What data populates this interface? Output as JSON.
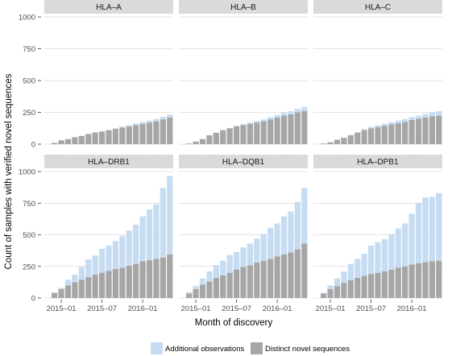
{
  "chart_data": {
    "type": "bar",
    "stacked": true,
    "facets_layout": "2 rows x 3 columns",
    "shared_y_axis": true,
    "ylim": [
      0,
      1000
    ],
    "yticks": [
      0,
      250,
      500,
      750,
      1000
    ],
    "ylabel": "Count of samples with verified novel sequences",
    "xlabel": "Month of discovery",
    "x_tick_labels": [
      "2015–01",
      "2015–07",
      "2016–01"
    ],
    "x_tick_months": [
      "2015-01",
      "2015-07",
      "2016-01"
    ],
    "months": [
      "2014-11",
      "2014-12",
      "2015-01",
      "2015-02",
      "2015-03",
      "2015-04",
      "2015-05",
      "2015-06",
      "2015-07",
      "2015-08",
      "2015-09",
      "2015-10",
      "2015-11",
      "2015-12",
      "2016-01",
      "2016-02",
      "2016-03",
      "2016-04",
      "2016-05"
    ],
    "series_names": [
      "Additional observations",
      "Distinct novel sequences"
    ],
    "colors": {
      "additional": "#c6dcf2",
      "distinct": "#a6a6a6",
      "strip": "#d9d9d9"
    },
    "legend_position": "bottom",
    "facets": [
      {
        "label": "HLA–A",
        "distinct": [
          0,
          10,
          30,
          40,
          55,
          65,
          80,
          92,
          100,
          110,
          120,
          130,
          140,
          150,
          160,
          170,
          180,
          195,
          210
        ],
        "additional": [
          0,
          0,
          0,
          0,
          0,
          0,
          0,
          0,
          0,
          2,
          5,
          8,
          10,
          12,
          15,
          16,
          18,
          20,
          22
        ]
      },
      {
        "label": "HLA–B",
        "distinct": [
          0,
          5,
          20,
          40,
          70,
          90,
          110,
          125,
          140,
          150,
          160,
          170,
          180,
          195,
          210,
          225,
          235,
          250,
          260
        ],
        "additional": [
          0,
          0,
          0,
          0,
          0,
          0,
          0,
          0,
          5,
          8,
          10,
          12,
          15,
          18,
          20,
          22,
          25,
          28,
          33
        ]
      },
      {
        "label": "HLA–C",
        "distinct": [
          0,
          5,
          15,
          35,
          50,
          70,
          90,
          110,
          125,
          135,
          145,
          155,
          165,
          175,
          190,
          200,
          210,
          220,
          225
        ],
        "additional": [
          0,
          0,
          0,
          0,
          0,
          2,
          5,
          8,
          10,
          12,
          15,
          18,
          20,
          22,
          23,
          25,
          28,
          30,
          35
        ]
      },
      {
        "label": "HLA–DRB1",
        "distinct": [
          0,
          40,
          70,
          100,
          125,
          145,
          165,
          185,
          200,
          215,
          230,
          240,
          255,
          270,
          290,
          300,
          310,
          320,
          345
        ],
        "additional": [
          0,
          5,
          10,
          45,
          60,
          100,
          140,
          150,
          190,
          200,
          220,
          250,
          280,
          310,
          355,
          400,
          430,
          550,
          620
        ]
      },
      {
        "label": "HLA–DQB1",
        "distinct": [
          0,
          35,
          70,
          105,
          130,
          160,
          180,
          200,
          225,
          245,
          260,
          280,
          295,
          310,
          330,
          345,
          360,
          385,
          430
        ],
        "additional": [
          0,
          10,
          25,
          50,
          80,
          100,
          115,
          140,
          140,
          155,
          170,
          190,
          210,
          245,
          260,
          300,
          325,
          375,
          440
        ]
      },
      {
        "label": "HLA–DPB1",
        "distinct": [
          0,
          35,
          70,
          95,
          120,
          140,
          160,
          175,
          190,
          200,
          210,
          225,
          240,
          250,
          265,
          275,
          285,
          290,
          295
        ],
        "additional": [
          0,
          5,
          30,
          60,
          90,
          130,
          150,
          175,
          225,
          240,
          255,
          280,
          310,
          340,
          400,
          475,
          510,
          510,
          535
        ]
      }
    ]
  }
}
